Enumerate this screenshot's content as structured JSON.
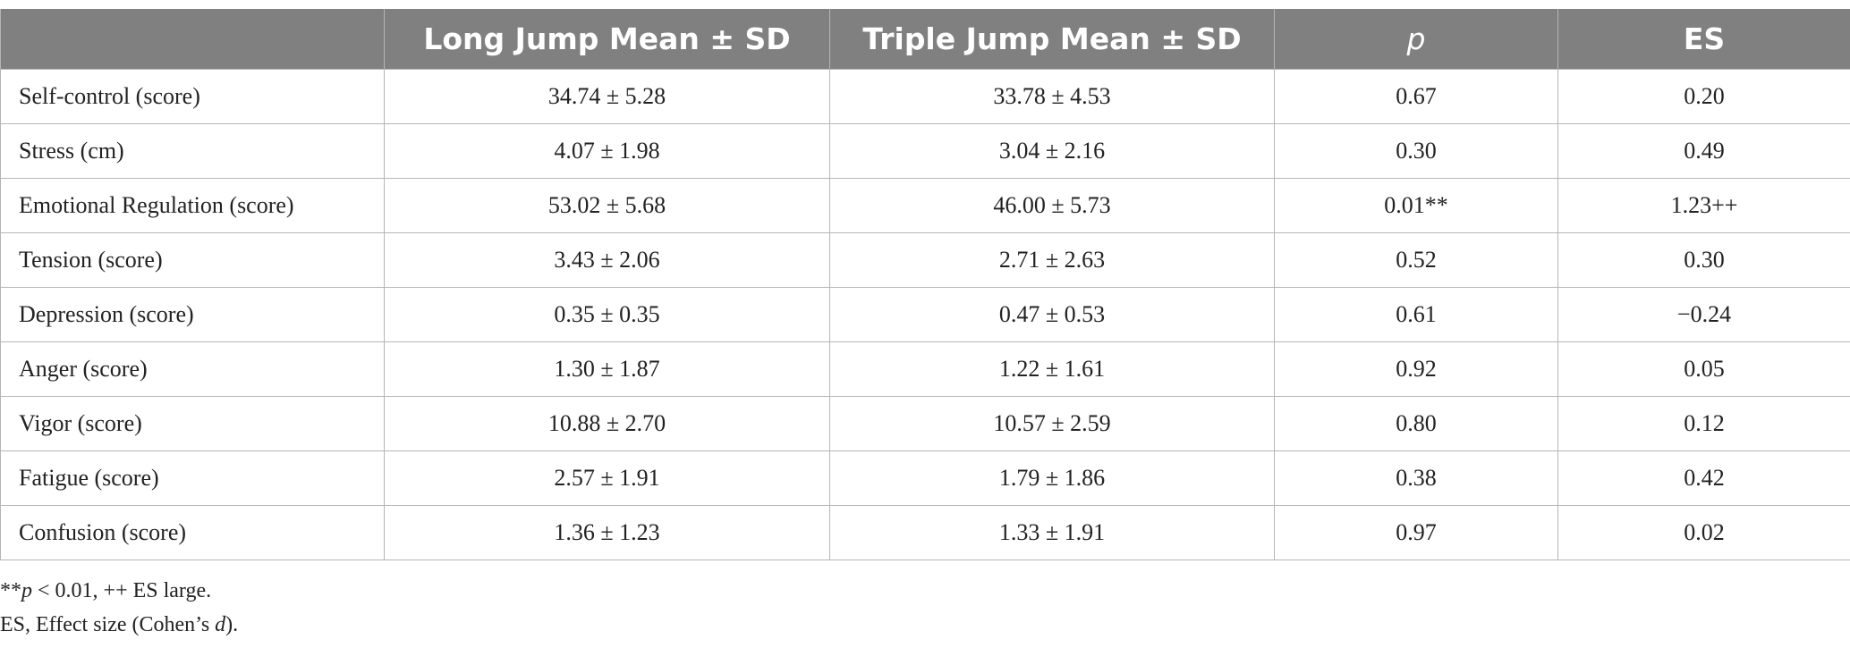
{
  "table": {
    "header": [
      "",
      "Long Jump Mean ± SD",
      "Triple Jump Mean ± SD",
      "p",
      "ES"
    ],
    "rows": [
      [
        "Self-control (score)",
        "34.74 ± 5.28",
        "33.78 ± 4.53",
        "0.67",
        "0.20"
      ],
      [
        "Stress (cm)",
        "4.07 ± 1.98",
        "3.04 ± 2.16",
        "0.30",
        "0.49"
      ],
      [
        "Emotional Regulation (score)",
        "53.02 ± 5.68",
        "46.00 ± 5.73",
        "0.01**",
        "1.23++"
      ],
      [
        "Tension (score)",
        "3.43 ± 2.06",
        "2.71 ± 2.63",
        "0.52",
        "0.30"
      ],
      [
        "Depression (score)",
        "0.35 ± 0.35",
        "0.47 ± 0.53",
        "0.61",
        "−0.24"
      ],
      [
        "Anger (score)",
        "1.30 ± 1.87",
        "1.22 ± 1.61",
        "0.92",
        "0.05"
      ],
      [
        "Vigor (score)",
        "10.88 ± 2.70",
        "10.57 ± 2.59",
        "0.80",
        "0.12"
      ],
      [
        "Fatigue (score)",
        "2.57 ± 1.91",
        "1.79 ± 1.86",
        "0.38",
        "0.42"
      ],
      [
        "Confusion (score)",
        "1.36 ± 1.23",
        "1.33 ± 1.91",
        "0.97",
        "0.02"
      ]
    ]
  },
  "footnotes": [
    [
      "**",
      "p",
      " < 0.01, ++ ES large."
    ],
    [
      "ES, Effect size (Cohen’s ",
      "d",
      ")."
    ]
  ]
}
